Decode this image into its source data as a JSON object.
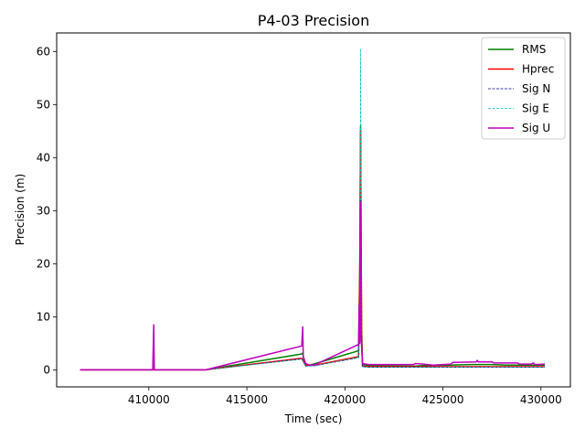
{
  "chart_data": {
    "type": "line",
    "title": "P4-03 Precision",
    "xlabel": "Time (sec)",
    "ylabel": "Precision (m)",
    "xlim": [
      405300,
      431500
    ],
    "ylim": [
      -3.2,
      63.5
    ],
    "xticks": [
      410000,
      415000,
      420000,
      425000,
      430000
    ],
    "yticks": [
      0,
      10,
      20,
      30,
      40,
      50,
      60
    ],
    "grid": false,
    "legend_position": "top-right",
    "series": [
      {
        "name": "RMS",
        "color": "#008000",
        "style": "solid",
        "points": [
          [
            406500,
            0
          ],
          [
            410200,
            0
          ],
          [
            410300,
            0
          ],
          [
            412900,
            0
          ],
          [
            417800,
            3.0
          ],
          [
            417850,
            3.2
          ],
          [
            417900,
            2.0
          ],
          [
            418000,
            1.0
          ],
          [
            418200,
            0.9
          ],
          [
            418500,
            1.2
          ],
          [
            420700,
            3.6
          ],
          [
            420760,
            20
          ],
          [
            420800,
            46
          ],
          [
            420850,
            8
          ],
          [
            420900,
            1.0
          ],
          [
            421200,
            0.8
          ],
          [
            423500,
            0.7
          ],
          [
            424000,
            0.8
          ],
          [
            425300,
            0.9
          ],
          [
            426500,
            1.0
          ],
          [
            427500,
            1.0
          ],
          [
            428300,
            0.9
          ],
          [
            429000,
            0.9
          ],
          [
            430200,
            0.9
          ]
        ]
      },
      {
        "name": "Hprec",
        "color": "#ff0000",
        "style": "solid",
        "points": [
          [
            406500,
            0
          ],
          [
            410200,
            0
          ],
          [
            410300,
            0
          ],
          [
            412900,
            0
          ],
          [
            417800,
            2.2
          ],
          [
            417900,
            1.5
          ],
          [
            418000,
            0.8
          ],
          [
            418500,
            0.9
          ],
          [
            420700,
            2.5
          ],
          [
            420760,
            18
          ],
          [
            420800,
            45
          ],
          [
            420850,
            6
          ],
          [
            420900,
            0.7
          ],
          [
            421200,
            0.6
          ],
          [
            425000,
            0.6
          ],
          [
            430200,
            0.6
          ]
        ]
      },
      {
        "name": "Sig N",
        "color": "#00008b",
        "style": "dashed",
        "points": [
          [
            406500,
            0
          ],
          [
            412900,
            0
          ],
          [
            417800,
            2.1
          ],
          [
            417900,
            1.4
          ],
          [
            418000,
            0.7
          ],
          [
            418500,
            0.8
          ],
          [
            420700,
            2.3
          ],
          [
            420780,
            15
          ],
          [
            420800,
            32
          ],
          [
            420850,
            5
          ],
          [
            420900,
            0.6
          ],
          [
            421200,
            0.5
          ],
          [
            425000,
            0.5
          ],
          [
            430200,
            0.5
          ]
        ]
      },
      {
        "name": "Sig E",
        "color": "#00bfbf",
        "style": "dashed",
        "points": [
          [
            406500,
            0
          ],
          [
            412900,
            0
          ],
          [
            417800,
            2.0
          ],
          [
            417900,
            1.3
          ],
          [
            418000,
            0.7
          ],
          [
            418500,
            0.8
          ],
          [
            420700,
            2.4
          ],
          [
            420780,
            20
          ],
          [
            420800,
            60.5
          ],
          [
            420850,
            6
          ],
          [
            420900,
            0.6
          ],
          [
            421200,
            0.5
          ],
          [
            425000,
            0.5
          ],
          [
            430200,
            0.5
          ]
        ]
      },
      {
        "name": "Sig U",
        "color": "#bf00bf",
        "style": "solid",
        "points": [
          [
            406500,
            0
          ],
          [
            410200,
            0
          ],
          [
            410250,
            8.5
          ],
          [
            410280,
            0
          ],
          [
            412900,
            0
          ],
          [
            417800,
            4.5
          ],
          [
            417850,
            8.1
          ],
          [
            417880,
            2.5
          ],
          [
            418000,
            1.2
          ],
          [
            418200,
            0.9
          ],
          [
            418500,
            1.0
          ],
          [
            420700,
            4.8
          ],
          [
            420720,
            12
          ],
          [
            420760,
            5
          ],
          [
            420800,
            31.5
          ],
          [
            420830,
            6
          ],
          [
            420900,
            1.2
          ],
          [
            421200,
            1.0
          ],
          [
            423500,
            1.0
          ],
          [
            423600,
            1.2
          ],
          [
            424000,
            1.1
          ],
          [
            424500,
            0.9
          ],
          [
            425400,
            1.1
          ],
          [
            425500,
            1.4
          ],
          [
            426700,
            1.5
          ],
          [
            426750,
            1.8
          ],
          [
            426800,
            1.5
          ],
          [
            427500,
            1.5
          ],
          [
            427600,
            1.3
          ],
          [
            428800,
            1.3
          ],
          [
            428900,
            1.1
          ],
          [
            429500,
            1.1
          ],
          [
            429600,
            1.3
          ],
          [
            429700,
            1.0
          ],
          [
            430200,
            1.1
          ]
        ]
      }
    ]
  }
}
